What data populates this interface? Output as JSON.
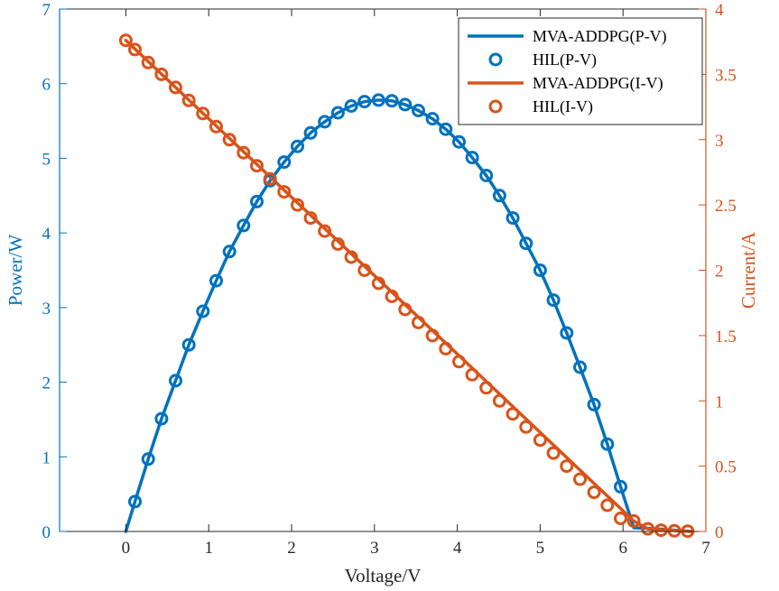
{
  "chart_data": {
    "type": "line",
    "title": "",
    "xlabel": "Voltage/V",
    "ylabel_left": "Power/W",
    "ylabel_right": "Current/A",
    "xlim": [
      -0.8,
      7
    ],
    "ylim_left": [
      0,
      7
    ],
    "ylim_right": [
      0,
      4
    ],
    "x_ticks": [
      "0",
      "1",
      "2",
      "3",
      "4",
      "5",
      "6",
      "7"
    ],
    "y_left_ticks": [
      "0",
      "1",
      "2",
      "3",
      "4",
      "5",
      "6",
      "7"
    ],
    "y_right_ticks": [
      "0",
      "0.5",
      "1",
      "1.5",
      "2",
      "2.5",
      "3",
      "3.5",
      "4"
    ],
    "grid": false,
    "legend_position": "top-right",
    "colors": {
      "power": "#0072BD",
      "current": "#D95319"
    },
    "series": [
      {
        "name": "MVA-ADDPG(P-V)",
        "axis": "left",
        "style": "line",
        "x": [
          0,
          0.11,
          0.27,
          0.43,
          0.6,
          0.76,
          0.93,
          1.09,
          1.25,
          1.42,
          1.58,
          1.74,
          1.91,
          2.07,
          2.23,
          2.4,
          2.56,
          2.72,
          2.88,
          3.05,
          3.21,
          3.37,
          3.53,
          3.7,
          3.86,
          4.02,
          4.18,
          4.35,
          4.51,
          4.67,
          4.83,
          5.0,
          5.16,
          5.32,
          5.48,
          5.65,
          5.81,
          5.97,
          6.13,
          6.35,
          6.82
        ],
        "y": [
          0,
          0.4,
          0.97,
          1.51,
          2.02,
          2.5,
          2.95,
          3.36,
          3.75,
          4.1,
          4.42,
          4.7,
          4.95,
          5.16,
          5.34,
          5.49,
          5.61,
          5.7,
          5.76,
          5.78,
          5.77,
          5.72,
          5.64,
          5.53,
          5.39,
          5.22,
          5.01,
          4.77,
          4.5,
          4.2,
          3.86,
          3.5,
          3.1,
          2.66,
          2.2,
          1.7,
          1.17,
          0.6,
          0.05,
          0.04,
          0
        ]
      },
      {
        "name": "HIL(P-V)",
        "axis": "left",
        "style": "markers",
        "x": [
          0.11,
          0.27,
          0.43,
          0.6,
          0.76,
          0.93,
          1.09,
          1.25,
          1.42,
          1.58,
          1.74,
          1.91,
          2.07,
          2.23,
          2.4,
          2.56,
          2.72,
          2.88,
          3.05,
          3.21,
          3.37,
          3.53,
          3.7,
          3.86,
          4.02,
          4.18,
          4.35,
          4.51,
          4.67,
          4.83,
          5.0,
          5.16,
          5.32,
          5.48,
          5.65,
          5.81,
          5.97
        ],
        "y": [
          0.4,
          0.97,
          1.51,
          2.02,
          2.5,
          2.95,
          3.36,
          3.75,
          4.1,
          4.42,
          4.7,
          4.95,
          5.16,
          5.34,
          5.49,
          5.61,
          5.7,
          5.76,
          5.78,
          5.77,
          5.72,
          5.64,
          5.53,
          5.39,
          5.22,
          5.01,
          4.77,
          4.5,
          4.2,
          3.86,
          3.5,
          3.1,
          2.66,
          2.2,
          1.7,
          1.17,
          0.6
        ]
      },
      {
        "name": "MVA-ADDPG(I-V)",
        "axis": "right",
        "style": "line",
        "x": [
          0,
          6.13,
          6.3,
          6.82
        ],
        "y": [
          3.76,
          0.08,
          0.02,
          0
        ]
      },
      {
        "name": "HIL(I-V)",
        "axis": "right",
        "style": "markers",
        "x": [
          0,
          0.11,
          0.27,
          0.43,
          0.6,
          0.76,
          0.93,
          1.09,
          1.25,
          1.42,
          1.58,
          1.74,
          1.91,
          2.07,
          2.23,
          2.4,
          2.56,
          2.72,
          2.88,
          3.05,
          3.21,
          3.37,
          3.53,
          3.7,
          3.86,
          4.02,
          4.18,
          4.35,
          4.51,
          4.67,
          4.83,
          5.0,
          5.16,
          5.32,
          5.48,
          5.65,
          5.81,
          5.97,
          6.13,
          6.3,
          6.46,
          6.62,
          6.78
        ],
        "y": [
          3.76,
          3.69,
          3.59,
          3.5,
          3.4,
          3.3,
          3.2,
          3.1,
          3.0,
          2.9,
          2.8,
          2.7,
          2.6,
          2.5,
          2.4,
          2.3,
          2.2,
          2.1,
          2.0,
          1.9,
          1.8,
          1.7,
          1.6,
          1.5,
          1.4,
          1.3,
          1.2,
          1.1,
          1.0,
          0.9,
          0.8,
          0.7,
          0.6,
          0.5,
          0.4,
          0.3,
          0.2,
          0.1,
          0.08,
          0.02,
          0.01,
          0.005,
          0.002
        ]
      }
    ]
  }
}
